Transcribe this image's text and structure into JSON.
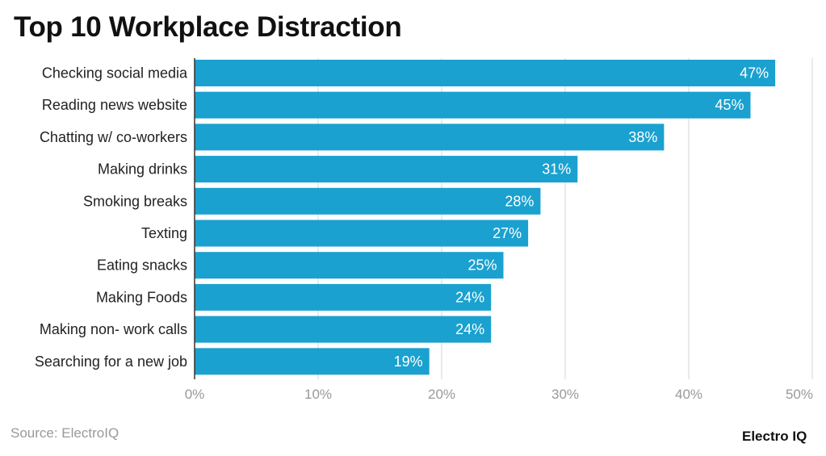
{
  "chart_data": {
    "type": "bar",
    "orientation": "horizontal",
    "title": "Top 10 Workplace Distraction",
    "categories": [
      "Checking social media",
      "Reading news website",
      "Chatting w/ co-workers",
      "Making drinks",
      "Smoking breaks",
      "Texting",
      "Eating snacks",
      "Making Foods",
      "Making non- work calls",
      "Searching for a new job"
    ],
    "values": [
      47,
      45,
      38,
      31,
      28,
      27,
      25,
      24,
      24,
      19
    ],
    "data_labels": [
      "47%",
      "45%",
      "38%",
      "31%",
      "28%",
      "27%",
      "25%",
      "24%",
      "24%",
      "19%"
    ],
    "xlim": [
      0,
      50
    ],
    "x_ticks": [
      0,
      10,
      20,
      30,
      40,
      50
    ],
    "x_tick_labels": [
      "0%",
      "10%",
      "20%",
      "30%",
      "40%",
      "50%"
    ],
    "xlabel": "",
    "ylabel": "",
    "grid": "vertical",
    "bar_color": "#1aa1cf"
  },
  "source": "Source: ElectroIQ",
  "logo": "Electro IQ"
}
